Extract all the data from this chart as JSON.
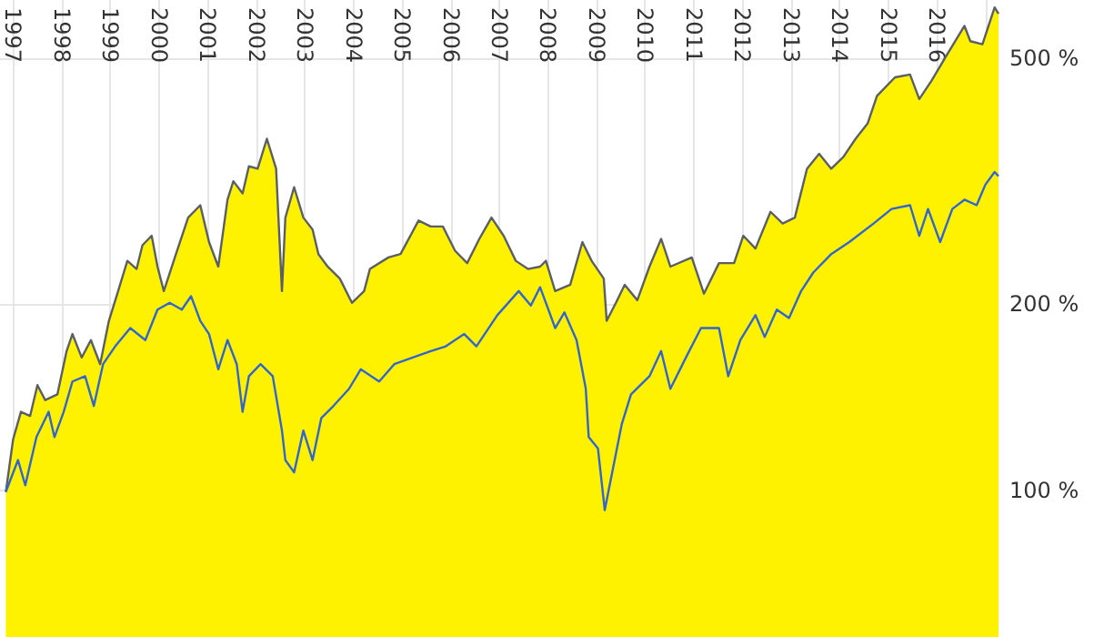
{
  "chart_data": {
    "type": "line",
    "xlim": [
      1996.73,
      2017.27
    ],
    "xticks": [
      1997,
      1998,
      1999,
      2000,
      2001,
      2002,
      2003,
      2004,
      2005,
      2006,
      2007,
      2008,
      2009,
      2010,
      2011,
      2012,
      2013,
      2014,
      2015,
      2016,
      {
        "value": 2017,
        "label": null
      }
    ],
    "ylim": [
      58,
      620
    ],
    "yticks": [
      {
        "value": 100,
        "label": "100 %"
      },
      {
        "value": 200,
        "label": "200 %"
      },
      {
        "value": 500,
        "label": "500 %"
      }
    ],
    "log": "y",
    "grid": true,
    "series": [
      {
        "type": "area",
        "color": "#fff200",
        "x": [
          1996.85,
          1997.0,
          1997.16,
          1997.35,
          1997.5,
          1997.66,
          1997.91,
          1998.1,
          1998.22,
          1998.41,
          1998.6,
          1998.79,
          1998.97,
          1999.16,
          1999.35,
          1999.54,
          1999.66,
          1999.85,
          1999.97,
          2000.1,
          2000.35,
          2000.6,
          2000.85,
          2001.03,
          2001.22,
          2001.41,
          2001.53,
          2001.72,
          2001.85,
          2002.03,
          2002.22,
          2002.41,
          2002.53,
          2002.6,
          2002.78,
          2002.97,
          2003.16,
          2003.28,
          2003.47,
          2003.72,
          2003.97,
          2004.22,
          2004.34,
          2004.72,
          2004.97,
          2005.34,
          2005.59,
          2005.84,
          2006.09,
          2006.34,
          2006.59,
          2006.84,
          2007.09,
          2007.34,
          2007.59,
          2007.84,
          2007.96,
          2008.15,
          2008.46,
          2008.71,
          2008.9,
          2009.15,
          2009.21,
          2009.4,
          2009.58,
          2009.84,
          2010.09,
          2010.33,
          2010.52,
          2010.96,
          2011.21,
          2011.52,
          2011.83,
          2012.02,
          2012.27,
          2012.58,
          2012.83,
          2013.08,
          2013.33,
          2013.58,
          2013.83,
          2014.08,
          2014.33,
          2014.58,
          2014.77,
          2015.14,
          2015.45,
          2015.64,
          2015.89,
          2016.19,
          2016.57,
          2016.69,
          2016.94,
          2017.19,
          2017.27
        ],
        "values": [
          99.5,
          121,
          134,
          132,
          148,
          140,
          143,
          168,
          179,
          164,
          175,
          160,
          188,
          210,
          235,
          228,
          249,
          258,
          230,
          210,
          241,
          276,
          289,
          252,
          230,
          295,
          316,
          302,
          334,
          331,
          370,
          331,
          210,
          276,
          309,
          276,
          264,
          241,
          230,
          220,
          201,
          210,
          228,
          238,
          241,
          273,
          267,
          267,
          244,
          233,
          255,
          276,
          258,
          235,
          228,
          230,
          235,
          210,
          215,
          252,
          235,
          220,
          188,
          201,
          215,
          203,
          230,
          255,
          230,
          238,
          208,
          233,
          233,
          258,
          246,
          282,
          270,
          276,
          331,
          350,
          331,
          346,
          370,
          392,
          434,
          465,
          470,
          429,
          459,
          503,
          563,
          532,
          526,
          603,
          589
        ]
      },
      {
        "color": "#3366cc",
        "x": [
          1996.85,
          1997.1,
          1997.25,
          1997.48,
          1997.73,
          1997.85,
          1998.04,
          1998.22,
          1998.48,
          1998.66,
          1998.85,
          1999.1,
          1999.41,
          1999.72,
          1999.97,
          2000.22,
          2000.47,
          2000.66,
          2000.85,
          2001.03,
          2001.22,
          2001.41,
          2001.6,
          2001.72,
          2001.85,
          2002.09,
          2002.34,
          2002.53,
          2002.6,
          2002.78,
          2002.97,
          2003.16,
          2003.34,
          2003.59,
          2003.91,
          2004.15,
          2004.53,
          2004.84,
          2005.22,
          2005.59,
          2005.9,
          2006.28,
          2006.53,
          2006.96,
          2007.4,
          2007.65,
          2007.84,
          2007.96,
          2008.15,
          2008.34,
          2008.59,
          2008.78,
          2008.84,
          2009.03,
          2009.17,
          2009.52,
          2009.71,
          2010.09,
          2010.33,
          2010.52,
          2010.84,
          2011.15,
          2011.52,
          2011.71,
          2011.96,
          2012.27,
          2012.46,
          2012.71,
          2012.96,
          2013.21,
          2013.46,
          2013.83,
          2014.2,
          2014.7,
          2015.07,
          2015.45,
          2015.64,
          2015.82,
          2016.07,
          2016.32,
          2016.57,
          2016.82,
          2017.0,
          2017.19,
          2017.27
        ],
        "values": [
          99.5,
          112,
          102,
          122,
          134,
          122,
          134,
          150,
          153,
          137,
          160,
          171,
          183,
          175,
          196,
          201,
          196,
          206,
          188,
          179,
          157,
          175,
          160,
          134,
          153,
          160,
          153,
          125,
          112,
          107,
          125,
          112,
          131,
          137,
          146,
          157,
          150,
          160,
          164,
          168,
          171,
          179,
          171,
          192,
          210,
          199,
          213,
          201,
          183,
          194,
          175,
          146,
          122,
          117,
          93,
          128,
          143,
          153,
          168,
          146,
          164,
          183,
          183,
          153,
          175,
          192,
          177,
          196,
          190,
          210,
          225,
          241,
          252,
          270,
          285,
          289,
          258,
          285,
          252,
          285,
          295,
          289,
          312,
          327,
          322
        ]
      }
    ]
  }
}
